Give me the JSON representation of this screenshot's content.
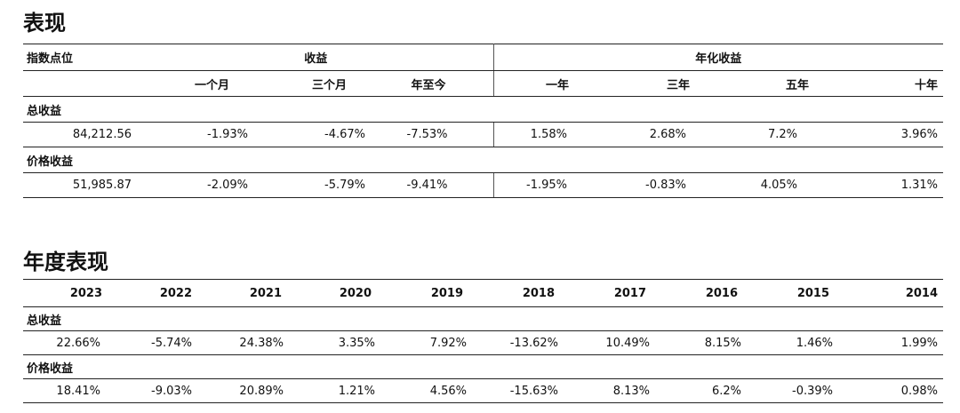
{
  "performance": {
    "title": "表现",
    "col_group_left": "指数点位",
    "col_group_returns": "收益",
    "col_group_annualized": "年化收益",
    "headers": [
      "一个月",
      "三个月",
      "年至今",
      "一年",
      "三年",
      "五年",
      "十年"
    ],
    "rows": [
      {
        "label": "总收益",
        "values": [
          "84,212.56",
          "-1.93%",
          "-4.67%",
          "-7.53%",
          "1.58%",
          "2.68%",
          "7.2%",
          "3.96%"
        ]
      },
      {
        "label": "价格收益",
        "values": [
          "51,985.87",
          "-2.09%",
          "-5.79%",
          "-9.41%",
          "-1.95%",
          "-0.83%",
          "4.05%",
          "1.31%"
        ]
      }
    ]
  },
  "annual": {
    "title": "年度表现",
    "headers": [
      "2023",
      "2022",
      "2021",
      "2020",
      "2019",
      "2018",
      "2017",
      "2016",
      "2015",
      "2014"
    ],
    "rows": [
      {
        "label": "总收益",
        "values": [
          "22.66%",
          "-5.74%",
          "24.38%",
          "3.35%",
          "7.92%",
          "-13.62%",
          "10.49%",
          "8.15%",
          "1.46%",
          "1.99%"
        ]
      },
      {
        "label": "价格收益",
        "values": [
          "18.41%",
          "-9.03%",
          "20.89%",
          "1.21%",
          "4.56%",
          "-15.63%",
          "8.13%",
          "6.2%",
          "-0.39%",
          "0.98%"
        ]
      }
    ]
  }
}
